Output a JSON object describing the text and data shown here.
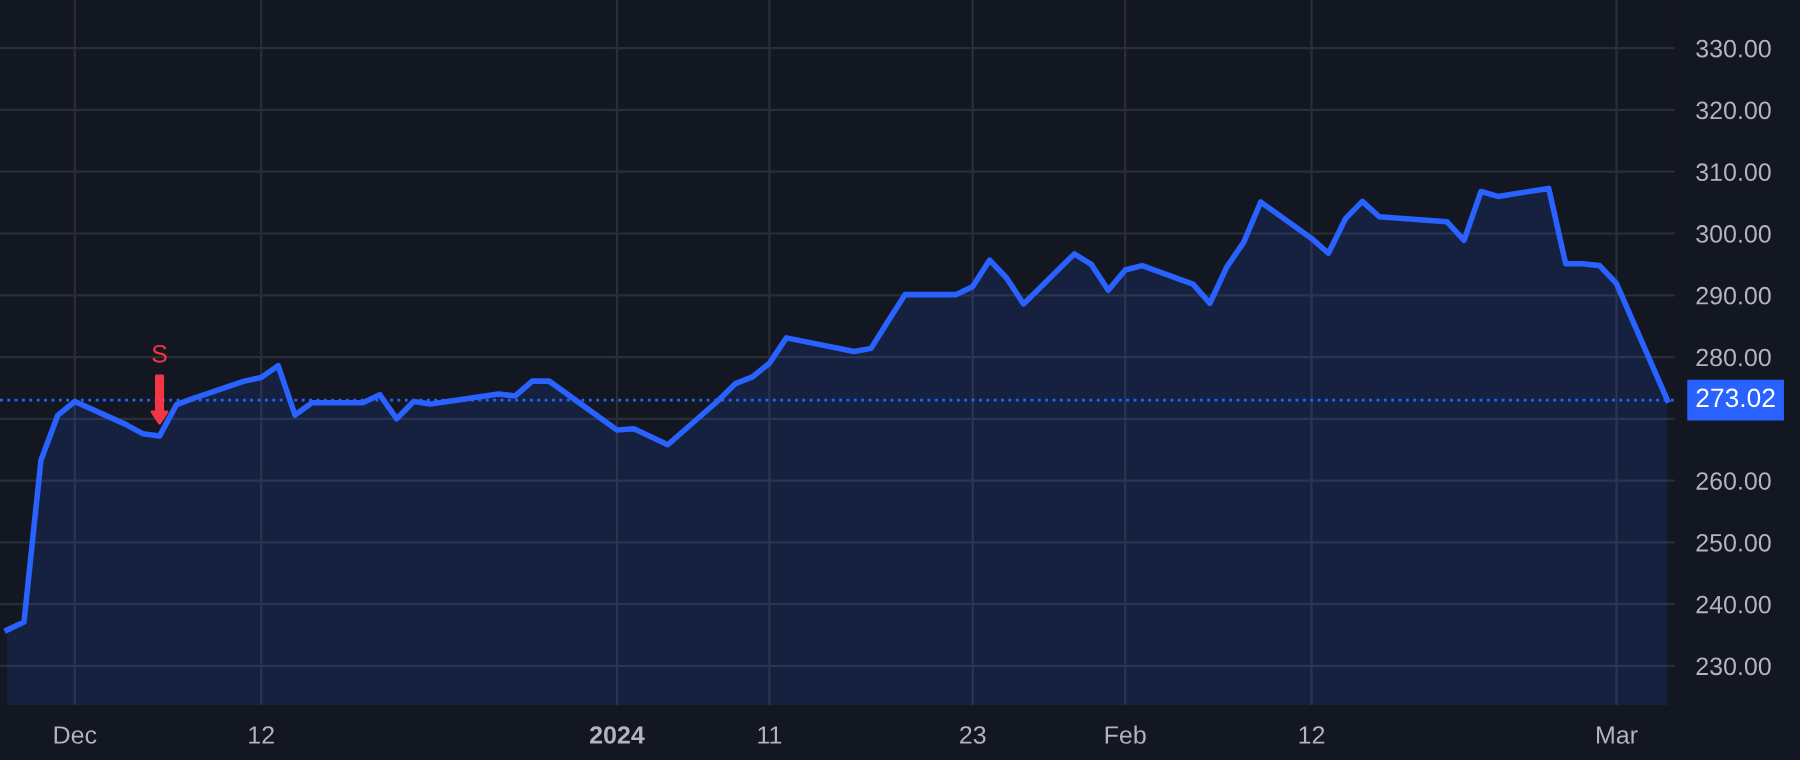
{
  "chart_data": {
    "type": "area",
    "x": [
      "2023-11-27",
      "2023-11-28",
      "2023-11-29",
      "2023-11-30",
      "2023-12-01",
      "2023-12-04",
      "2023-12-05",
      "2023-12-06",
      "2023-12-07",
      "2023-12-08",
      "2023-12-11",
      "2023-12-12",
      "2023-12-13",
      "2023-12-14",
      "2023-12-15",
      "2023-12-18",
      "2023-12-19",
      "2023-12-20",
      "2023-12-21",
      "2023-12-22",
      "2023-12-26",
      "2023-12-27",
      "2023-12-28",
      "2023-12-29",
      "2024-01-02",
      "2024-01-03",
      "2024-01-04",
      "2024-01-05",
      "2024-01-08",
      "2024-01-09",
      "2024-01-10",
      "2024-01-11",
      "2024-01-12",
      "2024-01-16",
      "2024-01-17",
      "2024-01-18",
      "2024-01-19",
      "2024-01-22",
      "2024-01-23",
      "2024-01-24",
      "2024-01-25",
      "2024-01-26",
      "2024-01-29",
      "2024-01-30",
      "2024-01-31",
      "2024-02-01",
      "2024-02-02",
      "2024-02-05",
      "2024-02-06",
      "2024-02-07",
      "2024-02-08",
      "2024-02-09",
      "2024-02-12",
      "2024-02-13",
      "2024-02-14",
      "2024-02-15",
      "2024-02-16",
      "2024-02-20",
      "2024-02-21",
      "2024-02-22",
      "2024-02-23",
      "2024-02-26",
      "2024-02-27",
      "2024-02-28",
      "2024-02-29",
      "2024-03-01",
      "2024-03-04"
    ],
    "series": [
      {
        "color": "#2962ff",
        "values": [
          235.8,
          237.1,
          263.3,
          270.6,
          272.8,
          269.1,
          267.6,
          267.2,
          272.3,
          273.3,
          276.1,
          276.7,
          278.6,
          270.6,
          272.6,
          272.6,
          273.9,
          270.0,
          272.8,
          272.4,
          274.0,
          273.7,
          276.1,
          276.1,
          268.2,
          268.4,
          267.1,
          265.8,
          273.0,
          275.7,
          276.8,
          279.0,
          283.1,
          280.9,
          281.4,
          285.8,
          290.1,
          290.1,
          291.4,
          295.7,
          292.8,
          288.6,
          296.7,
          295.0,
          290.8,
          294.1,
          294.8,
          291.8,
          288.7,
          294.6,
          298.6,
          305.1,
          299.2,
          296.8,
          302.4,
          305.2,
          302.7,
          301.9,
          298.9,
          306.8,
          306.0,
          307.3,
          295.1,
          295.1,
          294.8,
          291.9,
          273.02
        ]
      }
    ],
    "ylim": [
      223.5,
      337.8
    ],
    "yticks": [
      {
        "value": 230,
        "label": "230.00"
      },
      {
        "value": 240,
        "label": "240.00"
      },
      {
        "value": 250,
        "label": "250.00"
      },
      {
        "value": 260,
        "label": "260.00"
      },
      {
        "value": 270,
        "label": null
      },
      {
        "value": 280,
        "label": "280.00"
      },
      {
        "value": 290,
        "label": "290.00"
      },
      {
        "value": 300,
        "label": "300.00"
      },
      {
        "value": 310,
        "label": "310.00"
      },
      {
        "value": 320,
        "label": "320.00"
      },
      {
        "value": 330,
        "label": "330.00"
      }
    ],
    "xticks": [
      {
        "value": "2023-12-01",
        "label": "Dec"
      },
      {
        "value": "2023-12-12",
        "label": "12"
      },
      {
        "value": "2024-01-02",
        "label": "2024"
      },
      {
        "value": "2024-01-11",
        "label": "11"
      },
      {
        "value": "2024-01-23",
        "label": "23"
      },
      {
        "value": "2024-02-01",
        "label": "Feb"
      },
      {
        "value": "2024-02-12",
        "label": "12"
      },
      {
        "value": "2024-03-01",
        "label": "Mar"
      }
    ],
    "xlim": [
      "2023-11-26T14:00",
      "2024-03-04T12:00"
    ],
    "ref_lines": [
      {
        "axis": "y",
        "value": 273.02,
        "label": "273.02",
        "color": "#2962ff",
        "line_style": "dotted"
      }
    ],
    "annotations": [
      {
        "text": "S",
        "x": "2023-12-06",
        "y": 269.3
      }
    ],
    "grid": true,
    "legend": false
  }
}
